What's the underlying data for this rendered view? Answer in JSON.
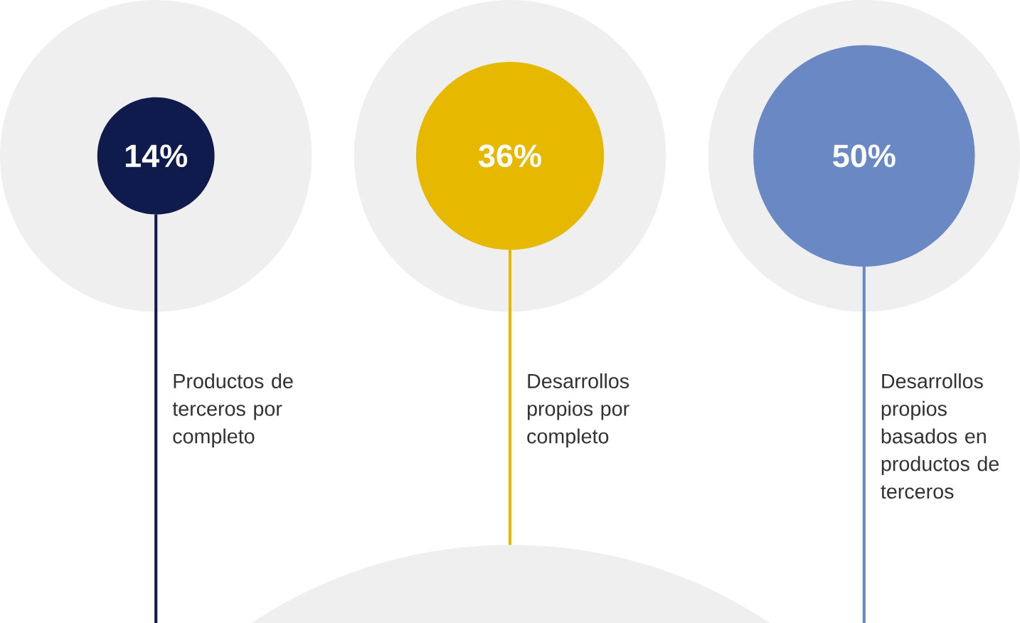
{
  "chart_data": {
    "type": "other",
    "categories": [
      "Productos de terceros por completo",
      "Desarrollos propios por completo",
      "Desarrollos propios basados en productos de terceros"
    ],
    "values": [
      14,
      36,
      50
    ],
    "value_labels": [
      "14%",
      "36%",
      "50%"
    ],
    "colors": [
      "#0f1b4c",
      "#e6b800",
      "#6a88c4"
    ]
  }
}
